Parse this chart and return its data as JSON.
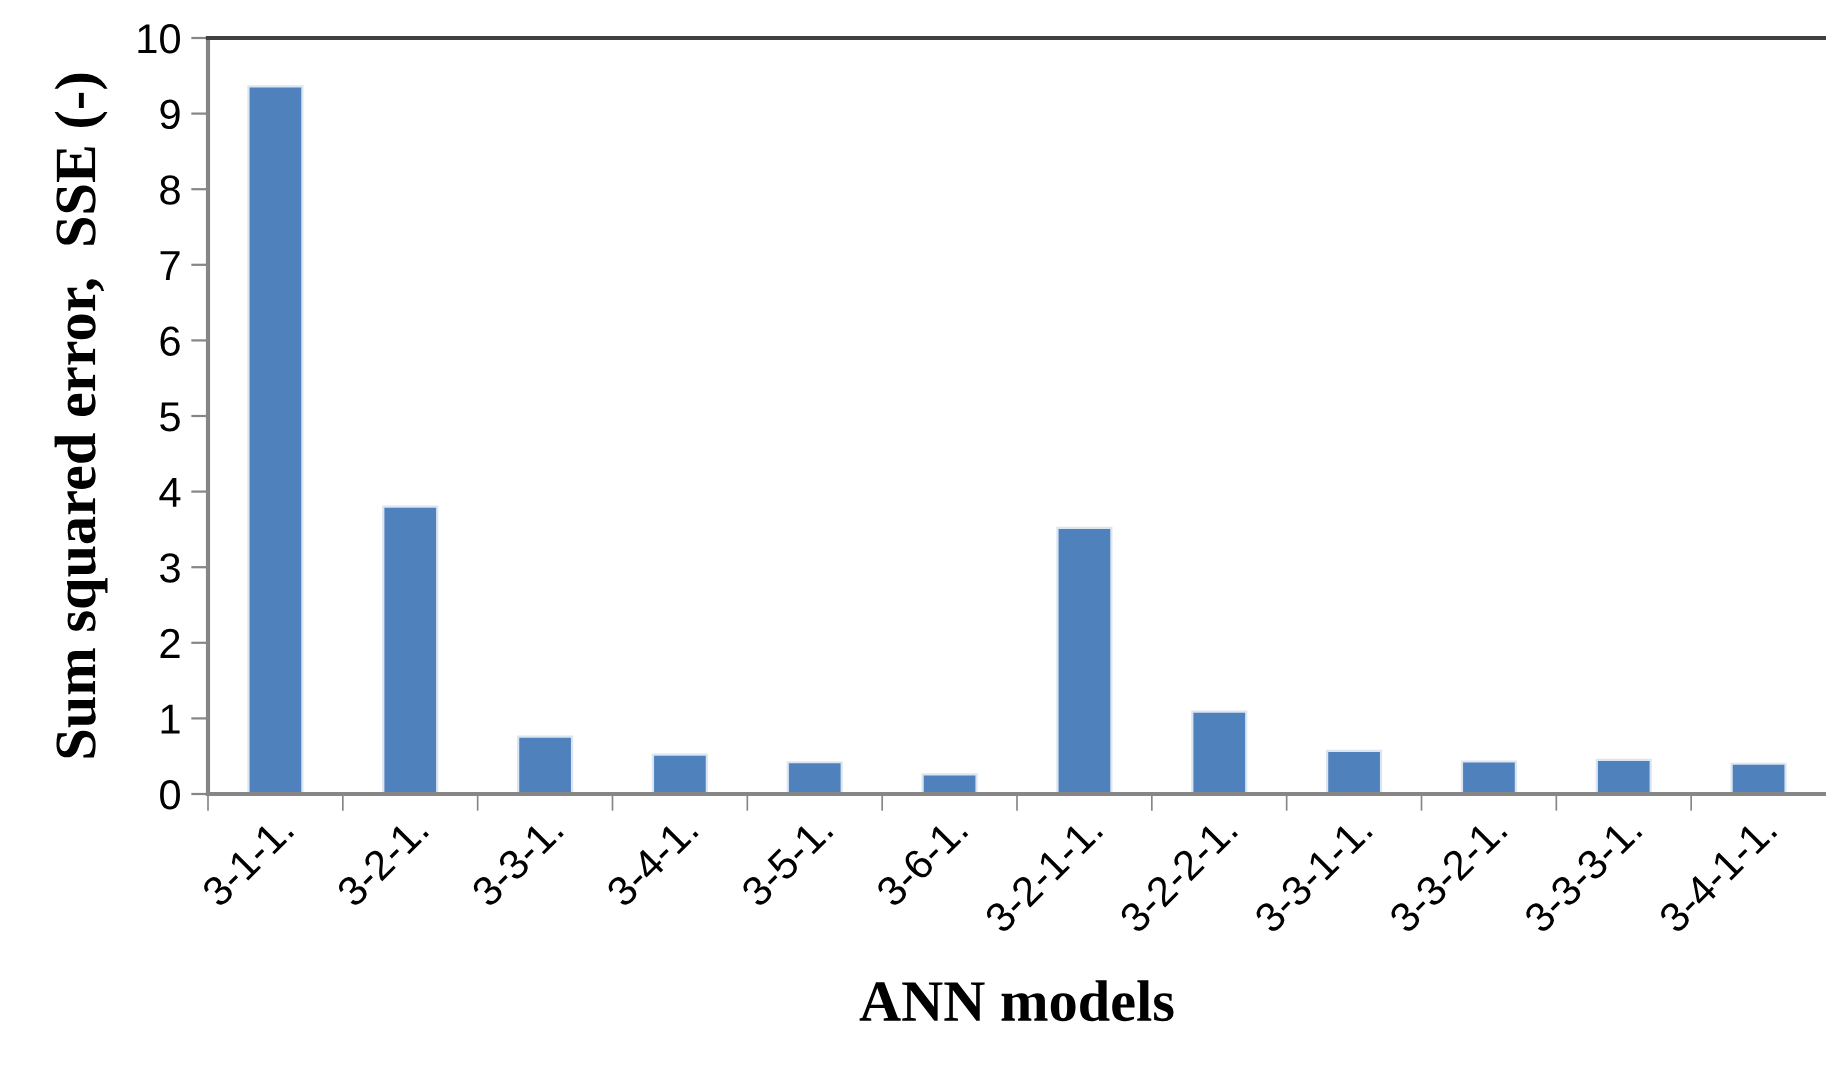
{
  "chart_data": {
    "type": "bar",
    "xlabel": "ANN models",
    "ylabel": "Sum squared error,  SSE (-)",
    "categories": [
      "3-1-1.",
      "3-2-1.",
      "3-3-1.",
      "3-4-1.",
      "3-5-1.",
      "3-6-1.",
      "3-2-1-1.",
      "3-2-2-1.",
      "3-3-1-1.",
      "3-3-2-1.",
      "3-3-3-1.",
      "3-4-1-1."
    ],
    "values": [
      9.36,
      3.8,
      0.76,
      0.52,
      0.42,
      0.26,
      3.52,
      1.09,
      0.57,
      0.43,
      0.45,
      0.4
    ],
    "color": "#4f81bd",
    "ylim": [
      0,
      10
    ],
    "yticks": [
      0,
      1,
      2,
      3,
      4,
      5,
      6,
      7,
      8,
      9,
      10
    ],
    "grid": false,
    "legend": false
  }
}
